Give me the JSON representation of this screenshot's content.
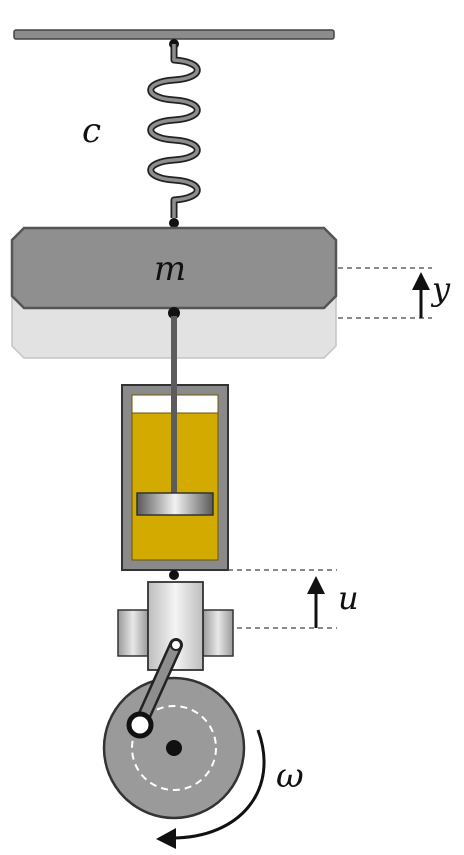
{
  "labels": {
    "spring": "c",
    "mass": "m",
    "mass_displacement": "y",
    "base_displacement": "u",
    "angular_velocity": "ω"
  },
  "colors": {
    "frame": "#555555",
    "mass_fill": "#8f8f8f",
    "mass_ghost": "#dcdcdc",
    "fluid": "#d2aa00",
    "cylinder": "#8a8a8a",
    "joint": "#111111"
  }
}
